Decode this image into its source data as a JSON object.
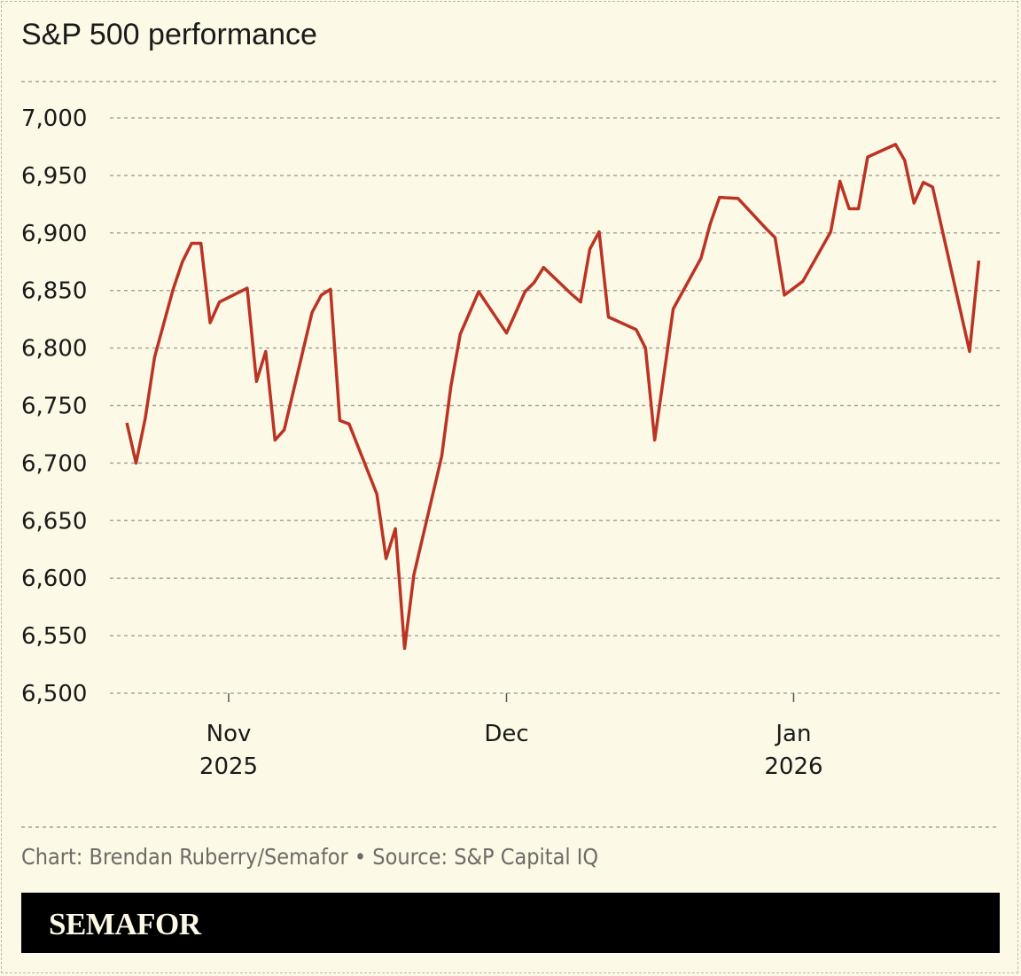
{
  "title": "S&P 500 performance",
  "source": "Chart: Brendan Ruberry/Semafor • Source: S&P Capital IQ",
  "brand": "SEMAFOR",
  "colors": {
    "line": "#bb3324",
    "grid": "#a9a69c",
    "background": "#fcf9e6"
  },
  "chart_data": {
    "type": "line",
    "ylim": [
      6500,
      7000
    ],
    "yticks": [
      6500,
      6550,
      6600,
      6650,
      6700,
      6750,
      6800,
      6850,
      6900,
      6950,
      7000
    ],
    "ytick_labels": [
      "6,500",
      "6,550",
      "6,600",
      "6,650",
      "6,700",
      "6,750",
      "6,800",
      "6,850",
      "6,900",
      "6,950",
      "7,000"
    ],
    "xticks": [
      {
        "date": "2025-11-01",
        "label": "Nov",
        "sublabel": "2025"
      },
      {
        "date": "2025-12-01",
        "label": "Dec",
        "sublabel": ""
      },
      {
        "date": "2026-01-01",
        "label": "Jan",
        "sublabel": "2026"
      }
    ],
    "grid": "horizontal dashed",
    "series": [
      {
        "x": [
          "2025-10-21",
          "2025-10-22",
          "2025-10-23",
          "2025-10-24",
          "2025-10-26",
          "2025-10-27",
          "2025-10-28",
          "2025-10-29",
          "2025-10-30",
          "2025-10-31",
          "2025-11-03",
          "2025-11-04",
          "2025-11-05",
          "2025-11-06",
          "2025-11-07",
          "2025-11-10",
          "2025-11-11",
          "2025-11-12",
          "2025-11-13",
          "2025-11-14",
          "2025-11-17",
          "2025-11-18",
          "2025-11-19",
          "2025-11-20",
          "2025-11-21",
          "2025-11-24",
          "2025-11-25",
          "2025-11-26",
          "2025-11-28",
          "2025-12-01",
          "2025-12-02",
          "2025-12-03",
          "2025-12-04",
          "2025-12-05",
          "2025-12-08",
          "2025-12-09",
          "2025-12-10",
          "2025-12-11",
          "2025-12-12",
          "2025-12-15",
          "2025-12-16",
          "2025-12-17",
          "2025-12-19",
          "2025-12-22",
          "2025-12-23",
          "2025-12-24",
          "2025-12-26",
          "2025-12-29",
          "2025-12-30",
          "2025-12-31",
          "2026-01-02",
          "2026-01-05",
          "2026-01-06",
          "2026-01-07",
          "2026-01-08",
          "2026-01-09",
          "2026-01-12",
          "2026-01-13",
          "2026-01-14",
          "2026-01-15",
          "2026-01-16",
          "2026-01-20",
          "2026-01-21"
        ],
        "y": [
          6735,
          6700,
          6739,
          6792,
          6851,
          6875,
          6891,
          6891,
          6822,
          6840,
          6852,
          6771,
          6797,
          6720,
          6729,
          6831,
          6846,
          6851,
          6737,
          6734,
          6673,
          6617,
          6643,
          6539,
          6603,
          6706,
          6767,
          6812,
          6849,
          6813,
          6831,
          6849,
          6857,
          6870,
          6847,
          6840,
          6886,
          6901,
          6827,
          6816,
          6800,
          6720,
          6834,
          6878,
          6908,
          6931,
          6930,
          6904,
          6896,
          6846,
          6858,
          6901,
          6945,
          6921,
          6921,
          6966,
          6977,
          6963,
          6926,
          6944,
          6940,
          6797,
          6876
        ]
      }
    ]
  }
}
